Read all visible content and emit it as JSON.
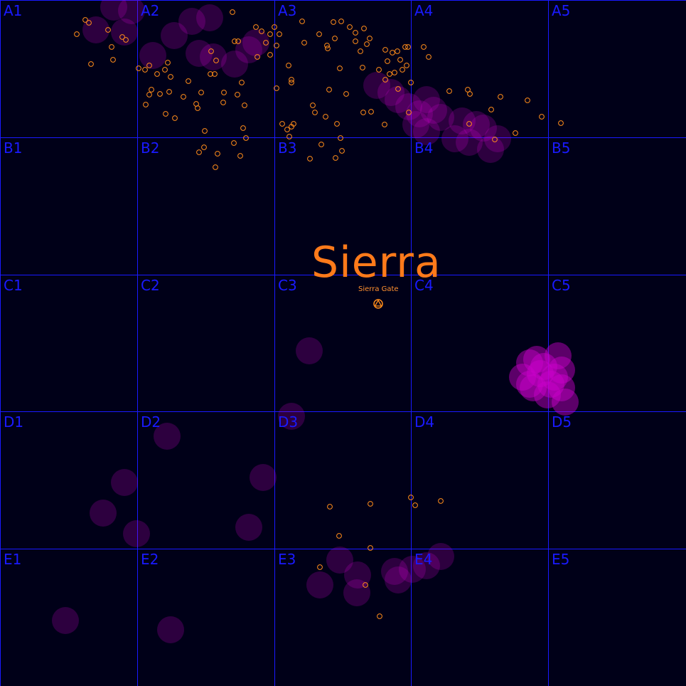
{
  "map": {
    "region_name": "Sierra",
    "poi": {
      "label": "Sierra Gate",
      "icon": "gate-marker-icon"
    },
    "grid": {
      "rows": [
        "A",
        "B",
        "C",
        "D",
        "E"
      ],
      "cols": [
        "1",
        "2",
        "3",
        "4",
        "5"
      ]
    },
    "colors": {
      "background": "#000018",
      "grid_line": "#1a1aff",
      "grid_label": "#1a1aff",
      "title": "#ff7a1a",
      "marker_stroke": "#ff8c1a",
      "heat": "#cc00cc"
    }
  }
}
